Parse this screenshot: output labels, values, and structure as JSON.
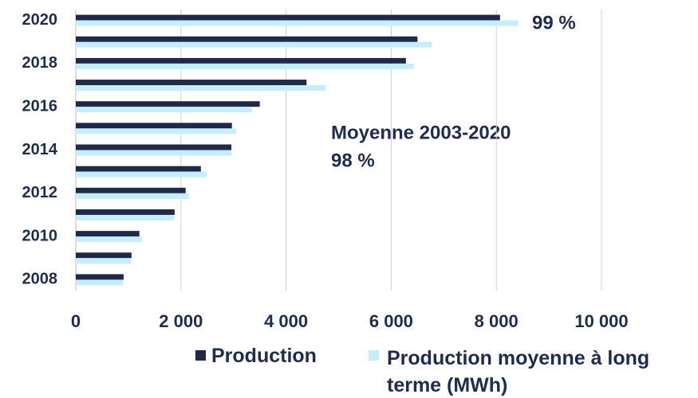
{
  "chart_data": {
    "type": "hbar",
    "categories": [
      "2008",
      null,
      "2010",
      null,
      "2012",
      null,
      "2014",
      null,
      "2016",
      null,
      "2018",
      null,
      "2020"
    ],
    "series": [
      {
        "name": "Production",
        "color": "#1f2a4a",
        "values": [
          910,
          1060,
          1210,
          1880,
          2090,
          2380,
          2960,
          2970,
          3500,
          4390,
          6280,
          6500,
          8070
        ]
      },
      {
        "name": "Production moyenne à long terme (MWh)",
        "color": "#c6eefa",
        "values": [
          900,
          1050,
          1260,
          1870,
          2150,
          2490,
          2960,
          3050,
          3350,
          4750,
          6430,
          6770,
          8410
        ]
      }
    ],
    "xlim": [
      0,
      10000
    ],
    "xticks": [
      0,
      {
        "value": 2000,
        "label": "2 000"
      },
      {
        "value": 4000,
        "label": "4 000"
      },
      {
        "value": 6000,
        "label": "6 000"
      },
      {
        "value": 8000,
        "label": "8 000"
      },
      {
        "value": 10000,
        "label": "10 000"
      }
    ],
    "grid": true,
    "annotations": [
      "99 %",
      "Moyenne 2003-2020",
      "98 %"
    ]
  }
}
